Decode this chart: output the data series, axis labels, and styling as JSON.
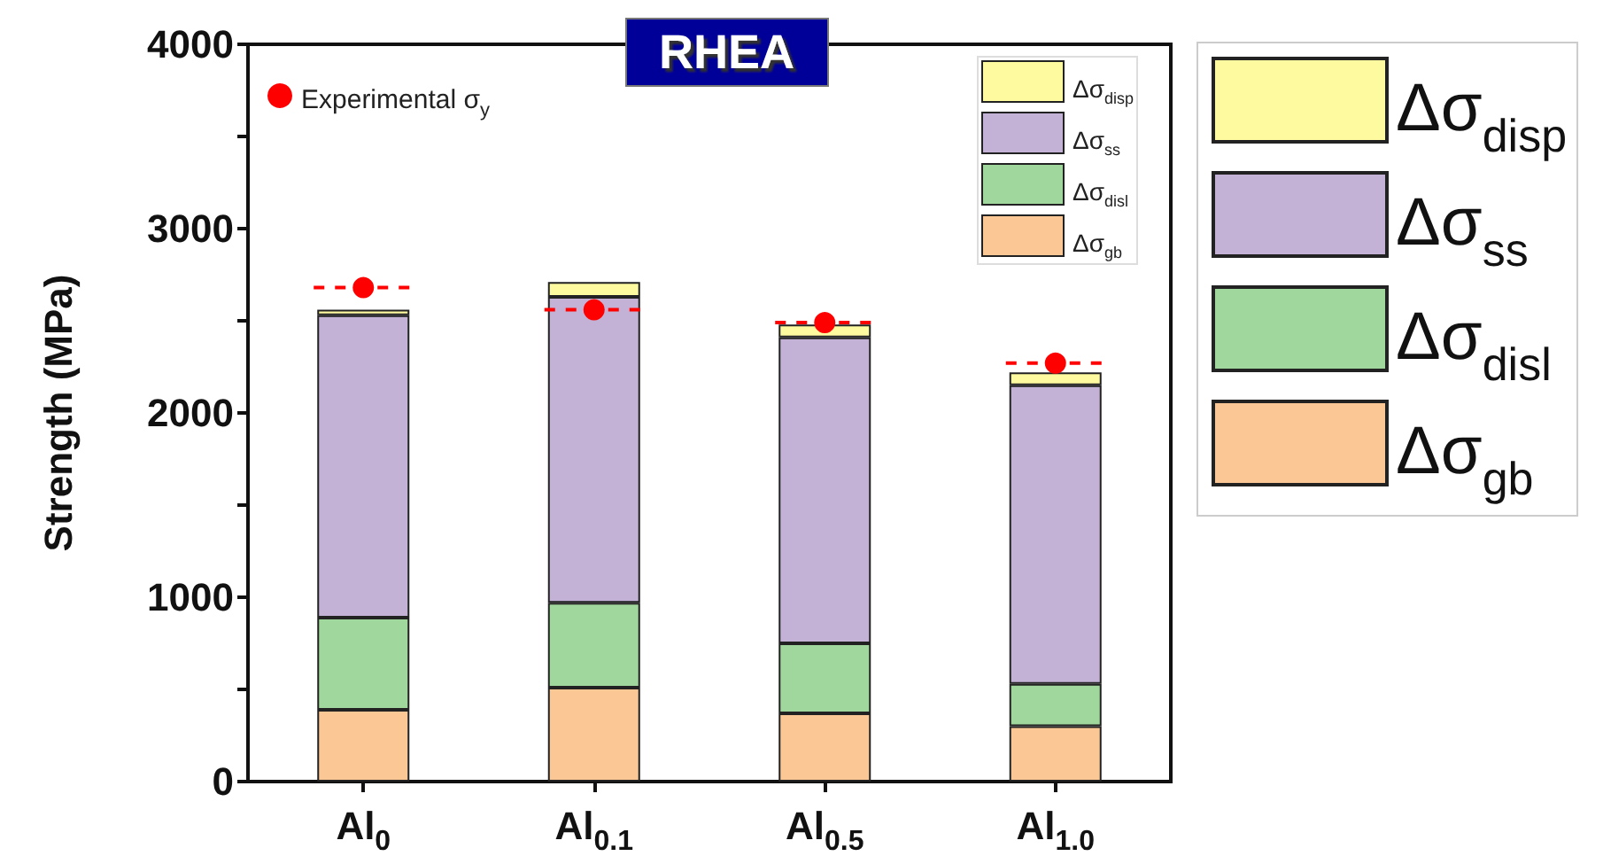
{
  "chart_data": {
    "type": "bar",
    "stacked": true,
    "title": "RHEA",
    "ylabel": "Strength (MPa)",
    "categories": [
      "Al$_{0}$",
      "Al$_{0.1}$",
      "Al$_{0.5}$",
      "Al$_{1.0}$"
    ],
    "series": [
      {
        "name": "Δσ$_{gb}$",
        "color": "#fac795",
        "values": [
          390,
          510,
          370,
          300
        ]
      },
      {
        "name": "Δσ$_{disl}$",
        "color": "#9fd79d",
        "values": [
          500,
          460,
          380,
          230
        ]
      },
      {
        "name": "Δσ$_{ss}$",
        "color": "#c3b1d6",
        "values": [
          1640,
          1660,
          1660,
          1620
        ]
      },
      {
        "name": "Δσ$_{disp}$",
        "color": "#fdfa9f",
        "values": [
          30,
          80,
          70,
          70
        ]
      },
      {
        "name": "Experimental σ$_{y}$",
        "type": "scatter",
        "color": "#ff0000",
        "marker": "circle",
        "line_style": "dashed",
        "x": [
          "Al$_{0}$",
          "Al$_{0.1}$",
          "Al$_{0.5}$",
          "Al$_{1.0}$"
        ],
        "values": [
          2680,
          2560,
          2490,
          2270
        ]
      }
    ],
    "ylim": [
      0,
      4000
    ],
    "yticks": [
      0,
      {
        "value": 500,
        "label": null
      },
      1000,
      {
        "value": 1500,
        "label": null
      },
      2000,
      {
        "value": 2500,
        "label": null
      },
      3000,
      {
        "value": 3500,
        "label": null
      },
      4000
    ],
    "grid": false,
    "legend": "right"
  }
}
